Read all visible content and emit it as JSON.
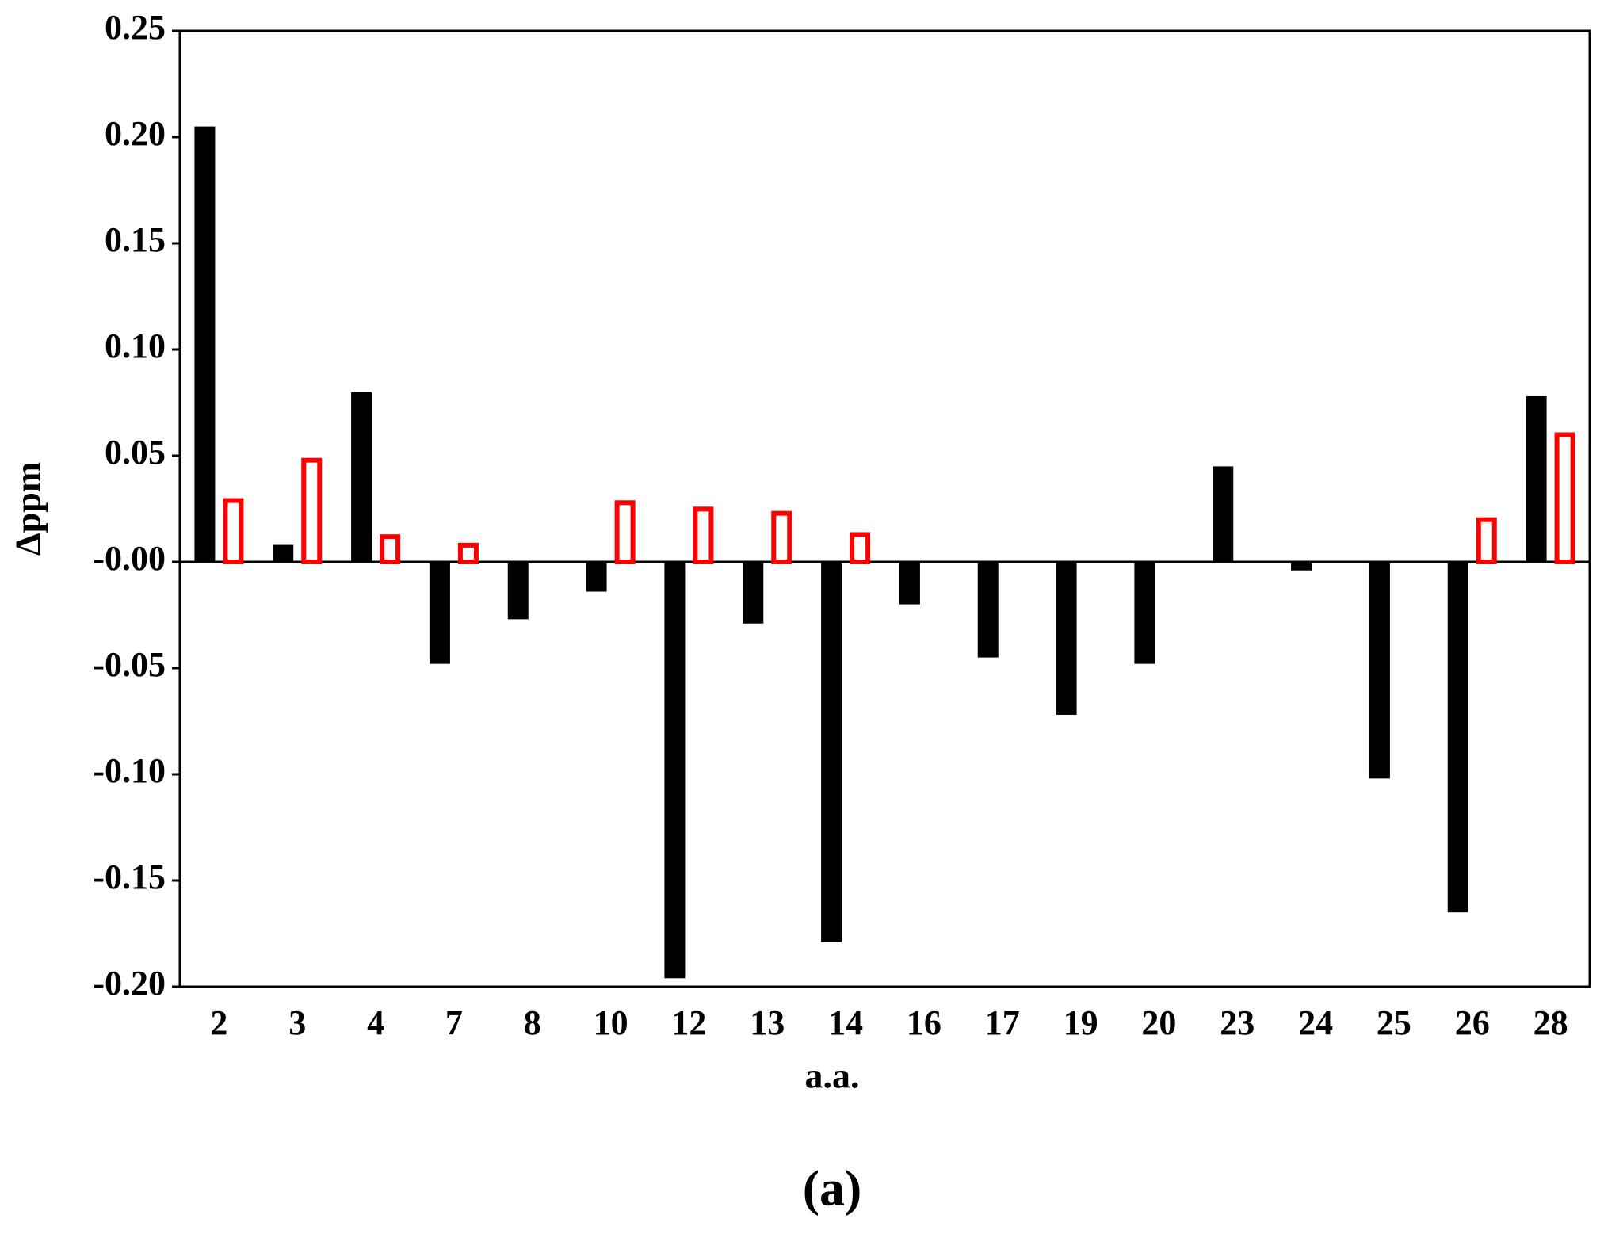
{
  "chart_data": {
    "type": "bar",
    "caption": "(a)",
    "x_label": "a.a.",
    "y_label": "Δppm",
    "categories": [
      "2",
      "3",
      "4",
      "7",
      "8",
      "10",
      "12",
      "13",
      "14",
      "16",
      "17",
      "19",
      "20",
      "23",
      "24",
      "25",
      "26",
      "28"
    ],
    "series": [
      {
        "color": "#000000",
        "fill": true,
        "values": [
          0.205,
          0.008,
          0.08,
          -0.048,
          -0.027,
          -0.014,
          -0.196,
          -0.029,
          -0.179,
          -0.02,
          -0.045,
          -0.072,
          -0.048,
          0.045,
          -0.004,
          -0.102,
          -0.165,
          0.078
        ]
      },
      {
        "color": "#ff0000",
        "fill": false,
        "values": [
          0.03,
          0.049,
          0.013,
          0.009,
          0,
          0.029,
          0.026,
          0.024,
          0.014,
          0,
          0,
          0,
          0,
          0,
          0,
          0,
          0.021,
          0.061
        ]
      }
    ],
    "ylim": [
      -0.2,
      0.25
    ],
    "yticks": [
      {
        "value": -0.2,
        "label": "-0.20"
      },
      -0.15,
      {
        "value": -0.1,
        "label": "-0.10"
      },
      -0.05,
      {
        "value": 0,
        "label": "-0.00"
      },
      0.05,
      {
        "value": 0.1,
        "label": "0.10"
      },
      0.15,
      {
        "value": 0.2,
        "label": "0.20"
      },
      0.25
    ],
    "grid": false
  }
}
